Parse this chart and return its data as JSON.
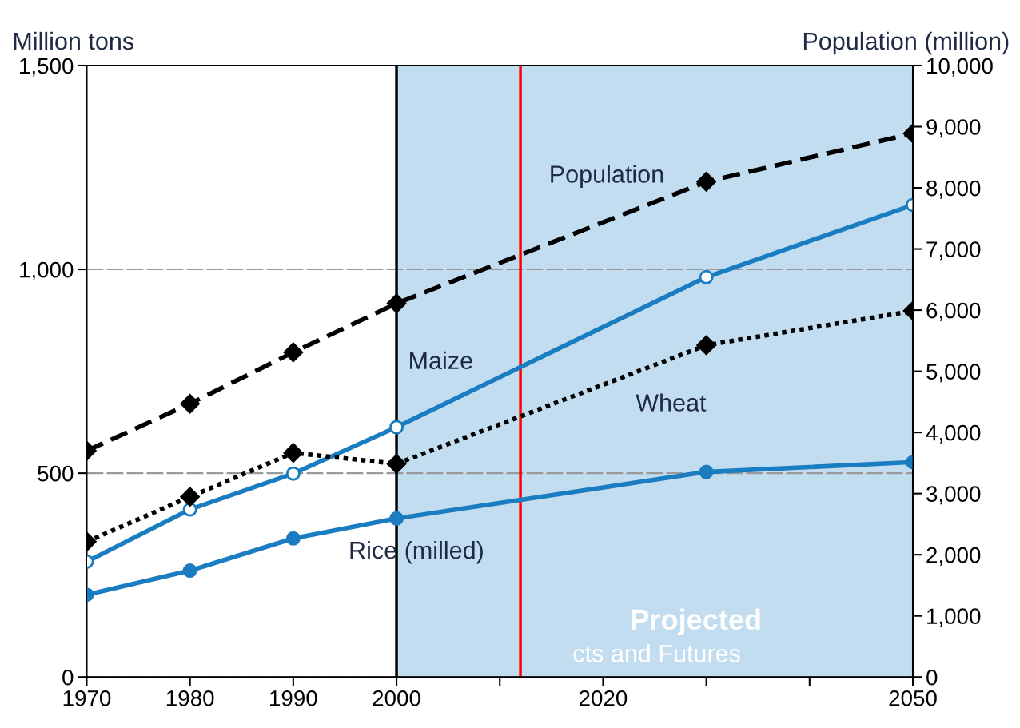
{
  "chart_data": {
    "type": "line",
    "ylabel": "Million tons",
    "y2label": "Population (million)",
    "x": [
      1970,
      1980,
      1990,
      2000,
      2030,
      2050
    ],
    "xlim": [
      1970,
      2050
    ],
    "xticks": [
      1970,
      1980,
      1990,
      2000,
      {
        "value": 2010,
        "label": null
      },
      2020,
      {
        "value": 2030,
        "label": null
      },
      {
        "value": 2040,
        "label": null
      },
      2050
    ],
    "ylim": [
      0,
      1500
    ],
    "yticks": [
      0,
      {
        "value": 500,
        "label": "500"
      },
      {
        "value": 1000,
        "label": "1,000"
      },
      {
        "value": 1500,
        "label": "1,500"
      }
    ],
    "y2lim": [
      0,
      10000
    ],
    "y2ticks": [
      0,
      {
        "value": 1000,
        "label": "1,000"
      },
      {
        "value": 2000,
        "label": "2,000"
      },
      {
        "value": 3000,
        "label": "3,000"
      },
      {
        "value": 4000,
        "label": "4,000"
      },
      {
        "value": 5000,
        "label": "5,000"
      },
      {
        "value": 6000,
        "label": "6,000"
      },
      {
        "value": 7000,
        "label": "7,000"
      },
      {
        "value": 8000,
        "label": "8,000"
      },
      {
        "value": 9000,
        "label": "9,000"
      },
      {
        "value": 10000,
        "label": "10,000"
      }
    ],
    "series": [
      {
        "name": "Population",
        "color": "#000000",
        "axis": "y2",
        "marker": "diamond",
        "line_style": "dashed",
        "values": [
          3700,
          4470,
          5310,
          6110,
          8100,
          8890
        ]
      },
      {
        "name": "Maize",
        "color": "#1a7cc1",
        "marker": "circle",
        "line_style": "solid",
        "values": [
          283,
          411,
          499,
          613,
          981,
          1158
        ]
      },
      {
        "name": "Wheat",
        "color": "#000000",
        "marker": "diamond",
        "line_style": "dotted",
        "values": [
          332,
          442,
          550,
          523,
          814,
          898
        ]
      },
      {
        "name": "Rice (milled)",
        "color": "#1a7cc1",
        "marker": "circle",
        "line_style": "solid",
        "values": [
          202,
          261,
          340,
          389,
          503,
          527
        ]
      }
    ],
    "bands": [
      {
        "axis": "x",
        "from": 2000,
        "to": 2050,
        "label": "Projected",
        "color": "#c2ddf0"
      }
    ],
    "ref_lines": [
      {
        "axis": "x",
        "value": 2000,
        "color": "#000000"
      },
      {
        "axis": "x",
        "value": 2012,
        "color": "#ff0000"
      }
    ],
    "annotations": [
      "cts and Futures"
    ],
    "grid": "y",
    "legend": false
  }
}
